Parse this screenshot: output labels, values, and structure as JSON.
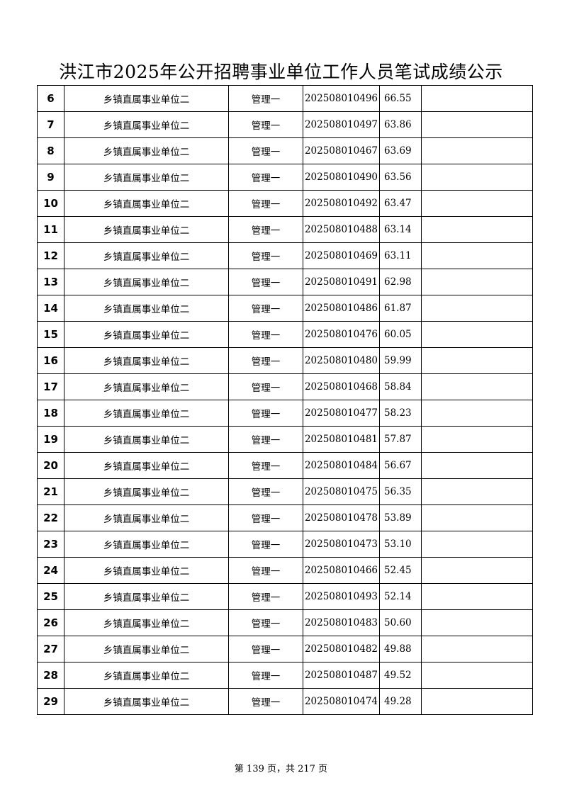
{
  "title": "洪江市2025年公开招聘事业单位工作人员笔试成绩公示",
  "rows": [
    {
      "no": "6",
      "unit": "乡镇直属事业单位二",
      "position": "管理一",
      "exam_id": "202508010496",
      "score": "66.55",
      "remark": ""
    },
    {
      "no": "7",
      "unit": "乡镇直属事业单位二",
      "position": "管理一",
      "exam_id": "202508010497",
      "score": "63.86",
      "remark": ""
    },
    {
      "no": "8",
      "unit": "乡镇直属事业单位二",
      "position": "管理一",
      "exam_id": "202508010467",
      "score": "63.69",
      "remark": ""
    },
    {
      "no": "9",
      "unit": "乡镇直属事业单位二",
      "position": "管理一",
      "exam_id": "202508010490",
      "score": "63.56",
      "remark": ""
    },
    {
      "no": "10",
      "unit": "乡镇直属事业单位二",
      "position": "管理一",
      "exam_id": "202508010492",
      "score": "63.47",
      "remark": ""
    },
    {
      "no": "11",
      "unit": "乡镇直属事业单位二",
      "position": "管理一",
      "exam_id": "202508010488",
      "score": "63.14",
      "remark": ""
    },
    {
      "no": "12",
      "unit": "乡镇直属事业单位二",
      "position": "管理一",
      "exam_id": "202508010469",
      "score": "63.11",
      "remark": ""
    },
    {
      "no": "13",
      "unit": "乡镇直属事业单位二",
      "position": "管理一",
      "exam_id": "202508010491",
      "score": "62.98",
      "remark": ""
    },
    {
      "no": "14",
      "unit": "乡镇直属事业单位二",
      "position": "管理一",
      "exam_id": "202508010486",
      "score": "61.87",
      "remark": ""
    },
    {
      "no": "15",
      "unit": "乡镇直属事业单位二",
      "position": "管理一",
      "exam_id": "202508010476",
      "score": "60.05",
      "remark": ""
    },
    {
      "no": "16",
      "unit": "乡镇直属事业单位二",
      "position": "管理一",
      "exam_id": "202508010480",
      "score": "59.99",
      "remark": ""
    },
    {
      "no": "17",
      "unit": "乡镇直属事业单位二",
      "position": "管理一",
      "exam_id": "202508010468",
      "score": "58.84",
      "remark": ""
    },
    {
      "no": "18",
      "unit": "乡镇直属事业单位二",
      "position": "管理一",
      "exam_id": "202508010477",
      "score": "58.23",
      "remark": ""
    },
    {
      "no": "19",
      "unit": "乡镇直属事业单位二",
      "position": "管理一",
      "exam_id": "202508010481",
      "score": "57.87",
      "remark": ""
    },
    {
      "no": "20",
      "unit": "乡镇直属事业单位二",
      "position": "管理一",
      "exam_id": "202508010484",
      "score": "56.67",
      "remark": ""
    },
    {
      "no": "21",
      "unit": "乡镇直属事业单位二",
      "position": "管理一",
      "exam_id": "202508010475",
      "score": "56.35",
      "remark": ""
    },
    {
      "no": "22",
      "unit": "乡镇直属事业单位二",
      "position": "管理一",
      "exam_id": "202508010478",
      "score": "53.89",
      "remark": ""
    },
    {
      "no": "23",
      "unit": "乡镇直属事业单位二",
      "position": "管理一",
      "exam_id": "202508010473",
      "score": "53.10",
      "remark": ""
    },
    {
      "no": "24",
      "unit": "乡镇直属事业单位二",
      "position": "管理一",
      "exam_id": "202508010466",
      "score": "52.45",
      "remark": ""
    },
    {
      "no": "25",
      "unit": "乡镇直属事业单位二",
      "position": "管理一",
      "exam_id": "202508010493",
      "score": "52.14",
      "remark": ""
    },
    {
      "no": "26",
      "unit": "乡镇直属事业单位二",
      "position": "管理一",
      "exam_id": "202508010483",
      "score": "50.60",
      "remark": ""
    },
    {
      "no": "27",
      "unit": "乡镇直属事业单位二",
      "position": "管理一",
      "exam_id": "202508010482",
      "score": "49.88",
      "remark": ""
    },
    {
      "no": "28",
      "unit": "乡镇直属事业单位二",
      "position": "管理一",
      "exam_id": "202508010487",
      "score": "49.52",
      "remark": ""
    },
    {
      "no": "29",
      "unit": "乡镇直属事业单位二",
      "position": "管理一",
      "exam_id": "202508010474",
      "score": "49.28",
      "remark": ""
    }
  ],
  "footer": "第 139 页，共 217 页"
}
